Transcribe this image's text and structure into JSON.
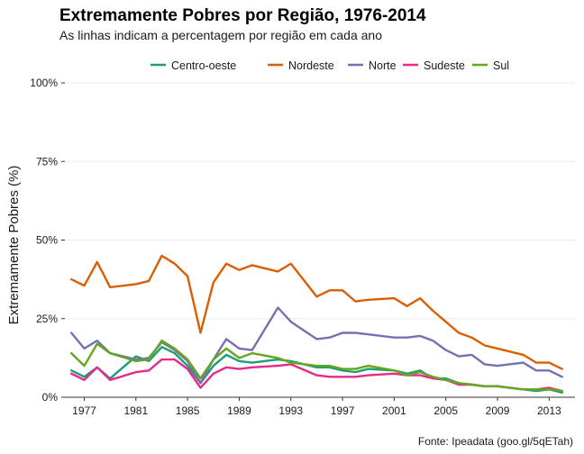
{
  "chart_data": {
    "type": "line",
    "title": "Extremamente Pobres por Região, 1976-2014",
    "subtitle": "As linhas indicam a percentagem por região em cada ano",
    "ylabel": "Extremamente Pobres (%)",
    "xlabel": "",
    "caption": "Fonte: Ipeadata (goo.gl/5qETah)",
    "legend_position": "top",
    "grid": true,
    "xlim": [
      1975.5,
      2015
    ],
    "ylim": [
      0,
      100
    ],
    "x_ticks": [
      1977,
      1981,
      1985,
      1989,
      1993,
      1997,
      2001,
      2005,
      2009,
      2013
    ],
    "y_ticks": [
      0,
      25,
      50,
      75,
      100
    ],
    "y_tick_labels": [
      "0%",
      "25%",
      "50%",
      "75%",
      "100%"
    ],
    "x": [
      1976,
      1977,
      1978,
      1979,
      1981,
      1982,
      1983,
      1984,
      1985,
      1986,
      1987,
      1988,
      1989,
      1990,
      1992,
      1993,
      1995,
      1996,
      1997,
      1998,
      1999,
      2001,
      2002,
      2003,
      2004,
      2005,
      2006,
      2007,
      2008,
      2009,
      2011,
      2012,
      2013,
      2014
    ],
    "series": [
      {
        "name": "Centro-oeste",
        "color": "#1b9e77",
        "values": [
          8.5,
          6.5,
          9.5,
          6,
          13,
          11.5,
          16,
          14,
          10,
          4.5,
          10,
          13.5,
          11.5,
          11,
          12,
          11.5,
          9.5,
          9.5,
          8.5,
          8,
          9,
          8.5,
          7.5,
          8.5,
          6,
          6,
          4.5,
          4,
          3.5,
          3.5,
          2.5,
          2,
          2.5,
          1.5
        ]
      },
      {
        "name": "Nordeste",
        "color": "#d95f02",
        "values": [
          37.5,
          35.5,
          43,
          35,
          36,
          37,
          45,
          42.5,
          38.5,
          20.5,
          36.5,
          42.5,
          40.5,
          42,
          40,
          42.5,
          32,
          34,
          34,
          30.5,
          31,
          31.5,
          29,
          31.5,
          27.5,
          24,
          20.5,
          19,
          16.5,
          15.5,
          13.5,
          11,
          11,
          9
        ]
      },
      {
        "name": "Norte",
        "color": "#7570b3",
        "values": [
          20.5,
          15.5,
          18,
          14,
          12,
          12.5,
          17.5,
          15,
          11.5,
          4.5,
          12,
          18.5,
          15.5,
          15,
          28.5,
          24,
          18.5,
          19,
          20.5,
          20.5,
          20,
          19,
          19,
          19.5,
          18,
          15,
          13,
          13.5,
          10.5,
          10,
          11,
          8.5,
          8.5,
          6.5
        ]
      },
      {
        "name": "Sudeste",
        "color": "#e7298a",
        "values": [
          7.5,
          5.5,
          9.5,
          5.5,
          8,
          8.5,
          12,
          12,
          9,
          3,
          7.5,
          9.5,
          9,
          9.5,
          10,
          10.5,
          7,
          6.5,
          6.5,
          6.5,
          7,
          7.5,
          7,
          7,
          6,
          5.5,
          4,
          4,
          3.5,
          3.5,
          2.5,
          2.5,
          3,
          2
        ]
      },
      {
        "name": "Sul",
        "color": "#66a61e",
        "values": [
          14,
          10,
          17,
          14,
          11.5,
          12,
          18,
          15.5,
          12,
          6,
          12,
          15.5,
          12.5,
          14,
          12.5,
          11,
          10,
          10,
          9,
          9,
          10,
          8.5,
          7,
          8,
          6.5,
          5.5,
          4.5,
          4,
          3.5,
          3.5,
          2.5,
          2.5,
          2.5,
          2
        ]
      }
    ]
  }
}
